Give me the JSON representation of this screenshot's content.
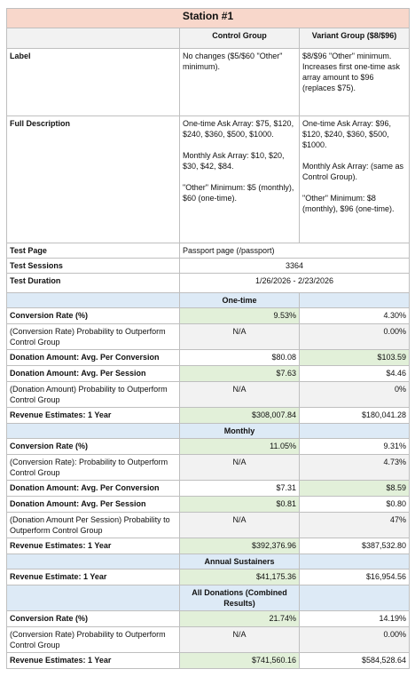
{
  "title": "Station #1",
  "columns": {
    "control": "Control Group",
    "variant": "Variant Group ($8/$96)"
  },
  "label": {
    "name": "Label",
    "control": "No changes ($5/$60 \"Other\" minimum).",
    "variant": "$8/$96 \"Other\" minimum. Increases first one-time ask array amount to $96 (replaces $75)."
  },
  "full_description": {
    "name": "Full Description",
    "control": "One-time Ask Array: $75, $120, $240, $360, $500, $1000.\n\nMonthly Ask Array: $10, $20, $30, $42, $84.\n\n\"Other\" Minimum: $5 (monthly), $60 (one-time).",
    "variant": "One-time Ask Array: $96, $120, $240, $360, $500, $1000.\n\nMonthly Ask Array: (same as Control Group).\n\n\"Other\" Minimum: $8 (monthly), $96 (one-time)."
  },
  "test_page": {
    "name": "Test Page",
    "value": "Passport page (/passport)"
  },
  "test_sessions": {
    "name": "Test Sessions",
    "value": "3364"
  },
  "test_duration": {
    "name": "Test Duration",
    "value": "1/26/2026 - 2/23/2026"
  },
  "sections": {
    "one_time": {
      "title": "One-time",
      "conversion_rate": {
        "name": "Conversion Rate (%)",
        "control": "9.53%",
        "variant": "4.30%"
      },
      "cr_probability": {
        "name": "(Conversion Rate) Probability to Outperform Control Group",
        "control": "N/A",
        "variant": "0.00%"
      },
      "avg_per_conversion": {
        "name": "Donation Amount: Avg. Per Conversion",
        "control": "$80.08",
        "variant": "$103.59"
      },
      "avg_per_session": {
        "name": "Donation Amount: Avg. Per Session",
        "control": "$7.63",
        "variant": "$4.46"
      },
      "da_probability": {
        "name": "(Donation Amount) Probability to Outperform Control Group",
        "control": "N/A",
        "variant": "0%"
      },
      "revenue": {
        "name": "Revenue Estimates: 1 Year",
        "control": "$308,007.84",
        "variant": "$180,041.28"
      }
    },
    "monthly": {
      "title": "Monthly",
      "conversion_rate": {
        "name": "Conversion Rate (%)",
        "control": "11.05%",
        "variant": "9.31%"
      },
      "cr_probability": {
        "name": "(Conversion Rate): Probability to Outperform Control Group",
        "control": "N/A",
        "variant": "4.73%"
      },
      "avg_per_conversion": {
        "name": "Donation Amount: Avg. Per Conversion",
        "control": "$7.31",
        "variant": "$8.59"
      },
      "avg_per_session": {
        "name": "Donation Amount: Avg. Per Session",
        "control": "$0.81",
        "variant": "$0.80"
      },
      "da_probability": {
        "name": "(Donation Amount Per Session) Probability to Outperform Control Group",
        "control": "N/A",
        "variant": "47%"
      },
      "revenue": {
        "name": "Revenue Estimates: 1 Year",
        "control": "$392,376.96",
        "variant": "$387,532.80"
      }
    },
    "annual": {
      "title": "Annual Sustainers",
      "revenue": {
        "name": "Revenue Estimate: 1 Year",
        "control": "$41,175.36",
        "variant": "$16,954.56"
      }
    },
    "all": {
      "title": "All Donations (Combined Results)",
      "conversion_rate": {
        "name": "Conversion Rate (%)",
        "control": "21.74%",
        "variant": "14.19%"
      },
      "cr_probability": {
        "name": "(Conversion Rate) Probability to Outperform Control Group",
        "control": "N/A",
        "variant": "0.00%"
      },
      "revenue": {
        "name": "Revenue Estimates: 1 Year",
        "control": "$741,560.16",
        "variant": "$584,528.64"
      }
    }
  },
  "colors": {
    "title_bg": "#f8d7cb",
    "section_bg": "#ddeaf6",
    "winner_bg": "#e2f0d9",
    "na_bg": "#f2f2f2"
  }
}
